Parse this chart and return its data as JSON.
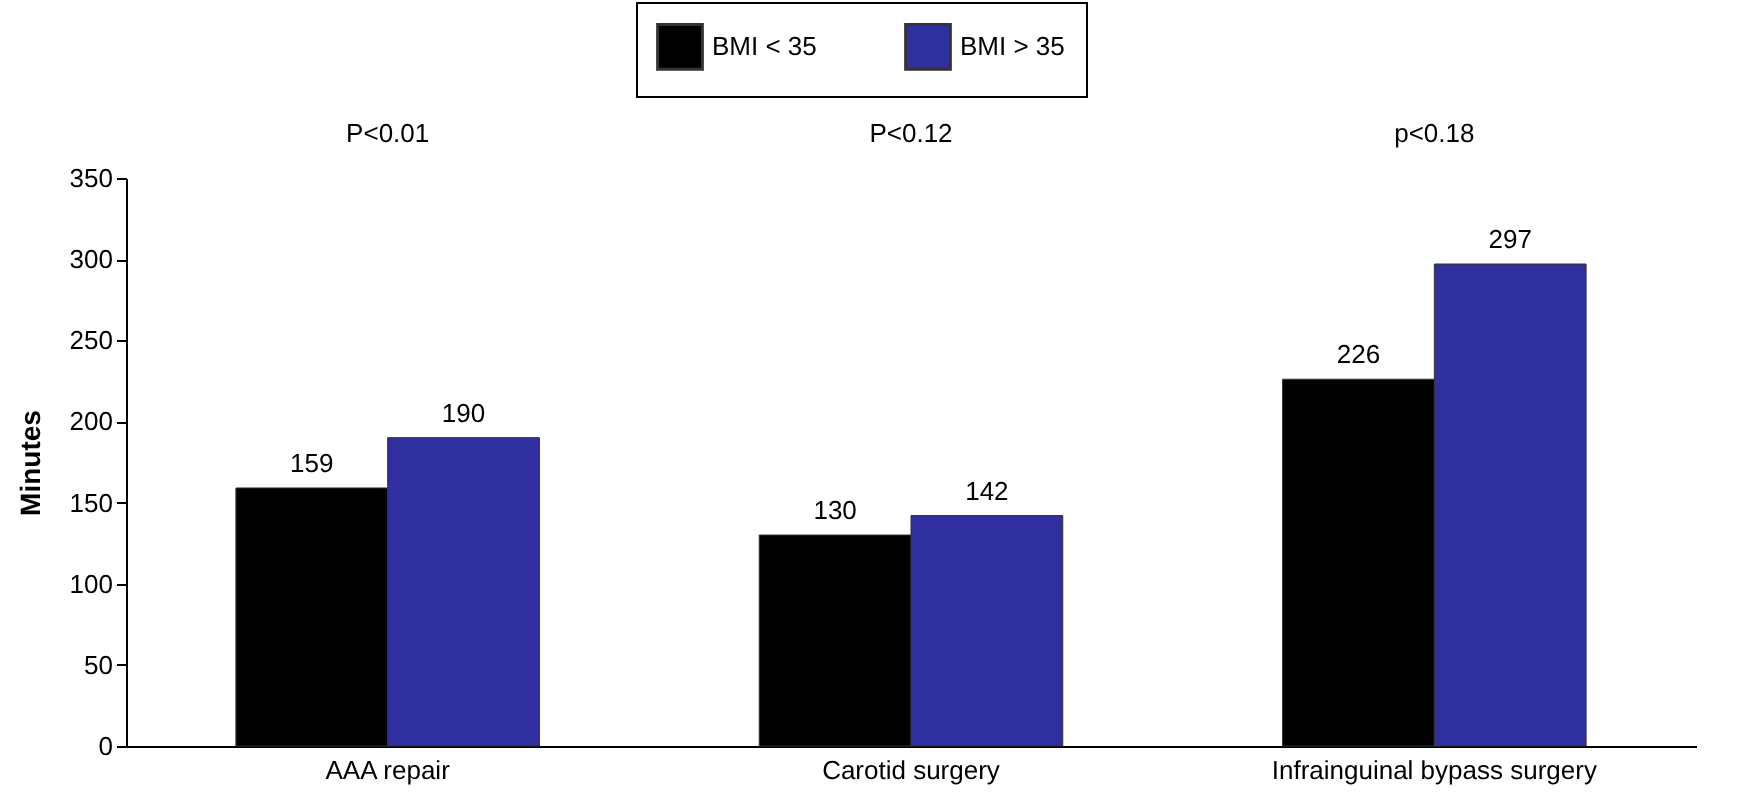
{
  "chart_data": {
    "type": "bar",
    "ylabel": "Minutes",
    "categories": [
      "AAA repair",
      "Carotid surgery",
      "Infrainguinal bypass surgery"
    ],
    "series": [
      {
        "name": "BMI < 35",
        "color": "#000000",
        "values": [
          159,
          130,
          226
        ]
      },
      {
        "name": "BMI > 35",
        "color": "#2f2fa0",
        "values": [
          190,
          142,
          297
        ]
      }
    ],
    "ylim": [
      0,
      350
    ],
    "yticks": [
      0,
      50,
      100,
      150,
      200,
      250,
      300,
      350
    ],
    "grid": false,
    "legend": "top",
    "data_labels": true,
    "annotations": [
      "P<0.01",
      "P<0.12",
      "p<0.18"
    ]
  }
}
